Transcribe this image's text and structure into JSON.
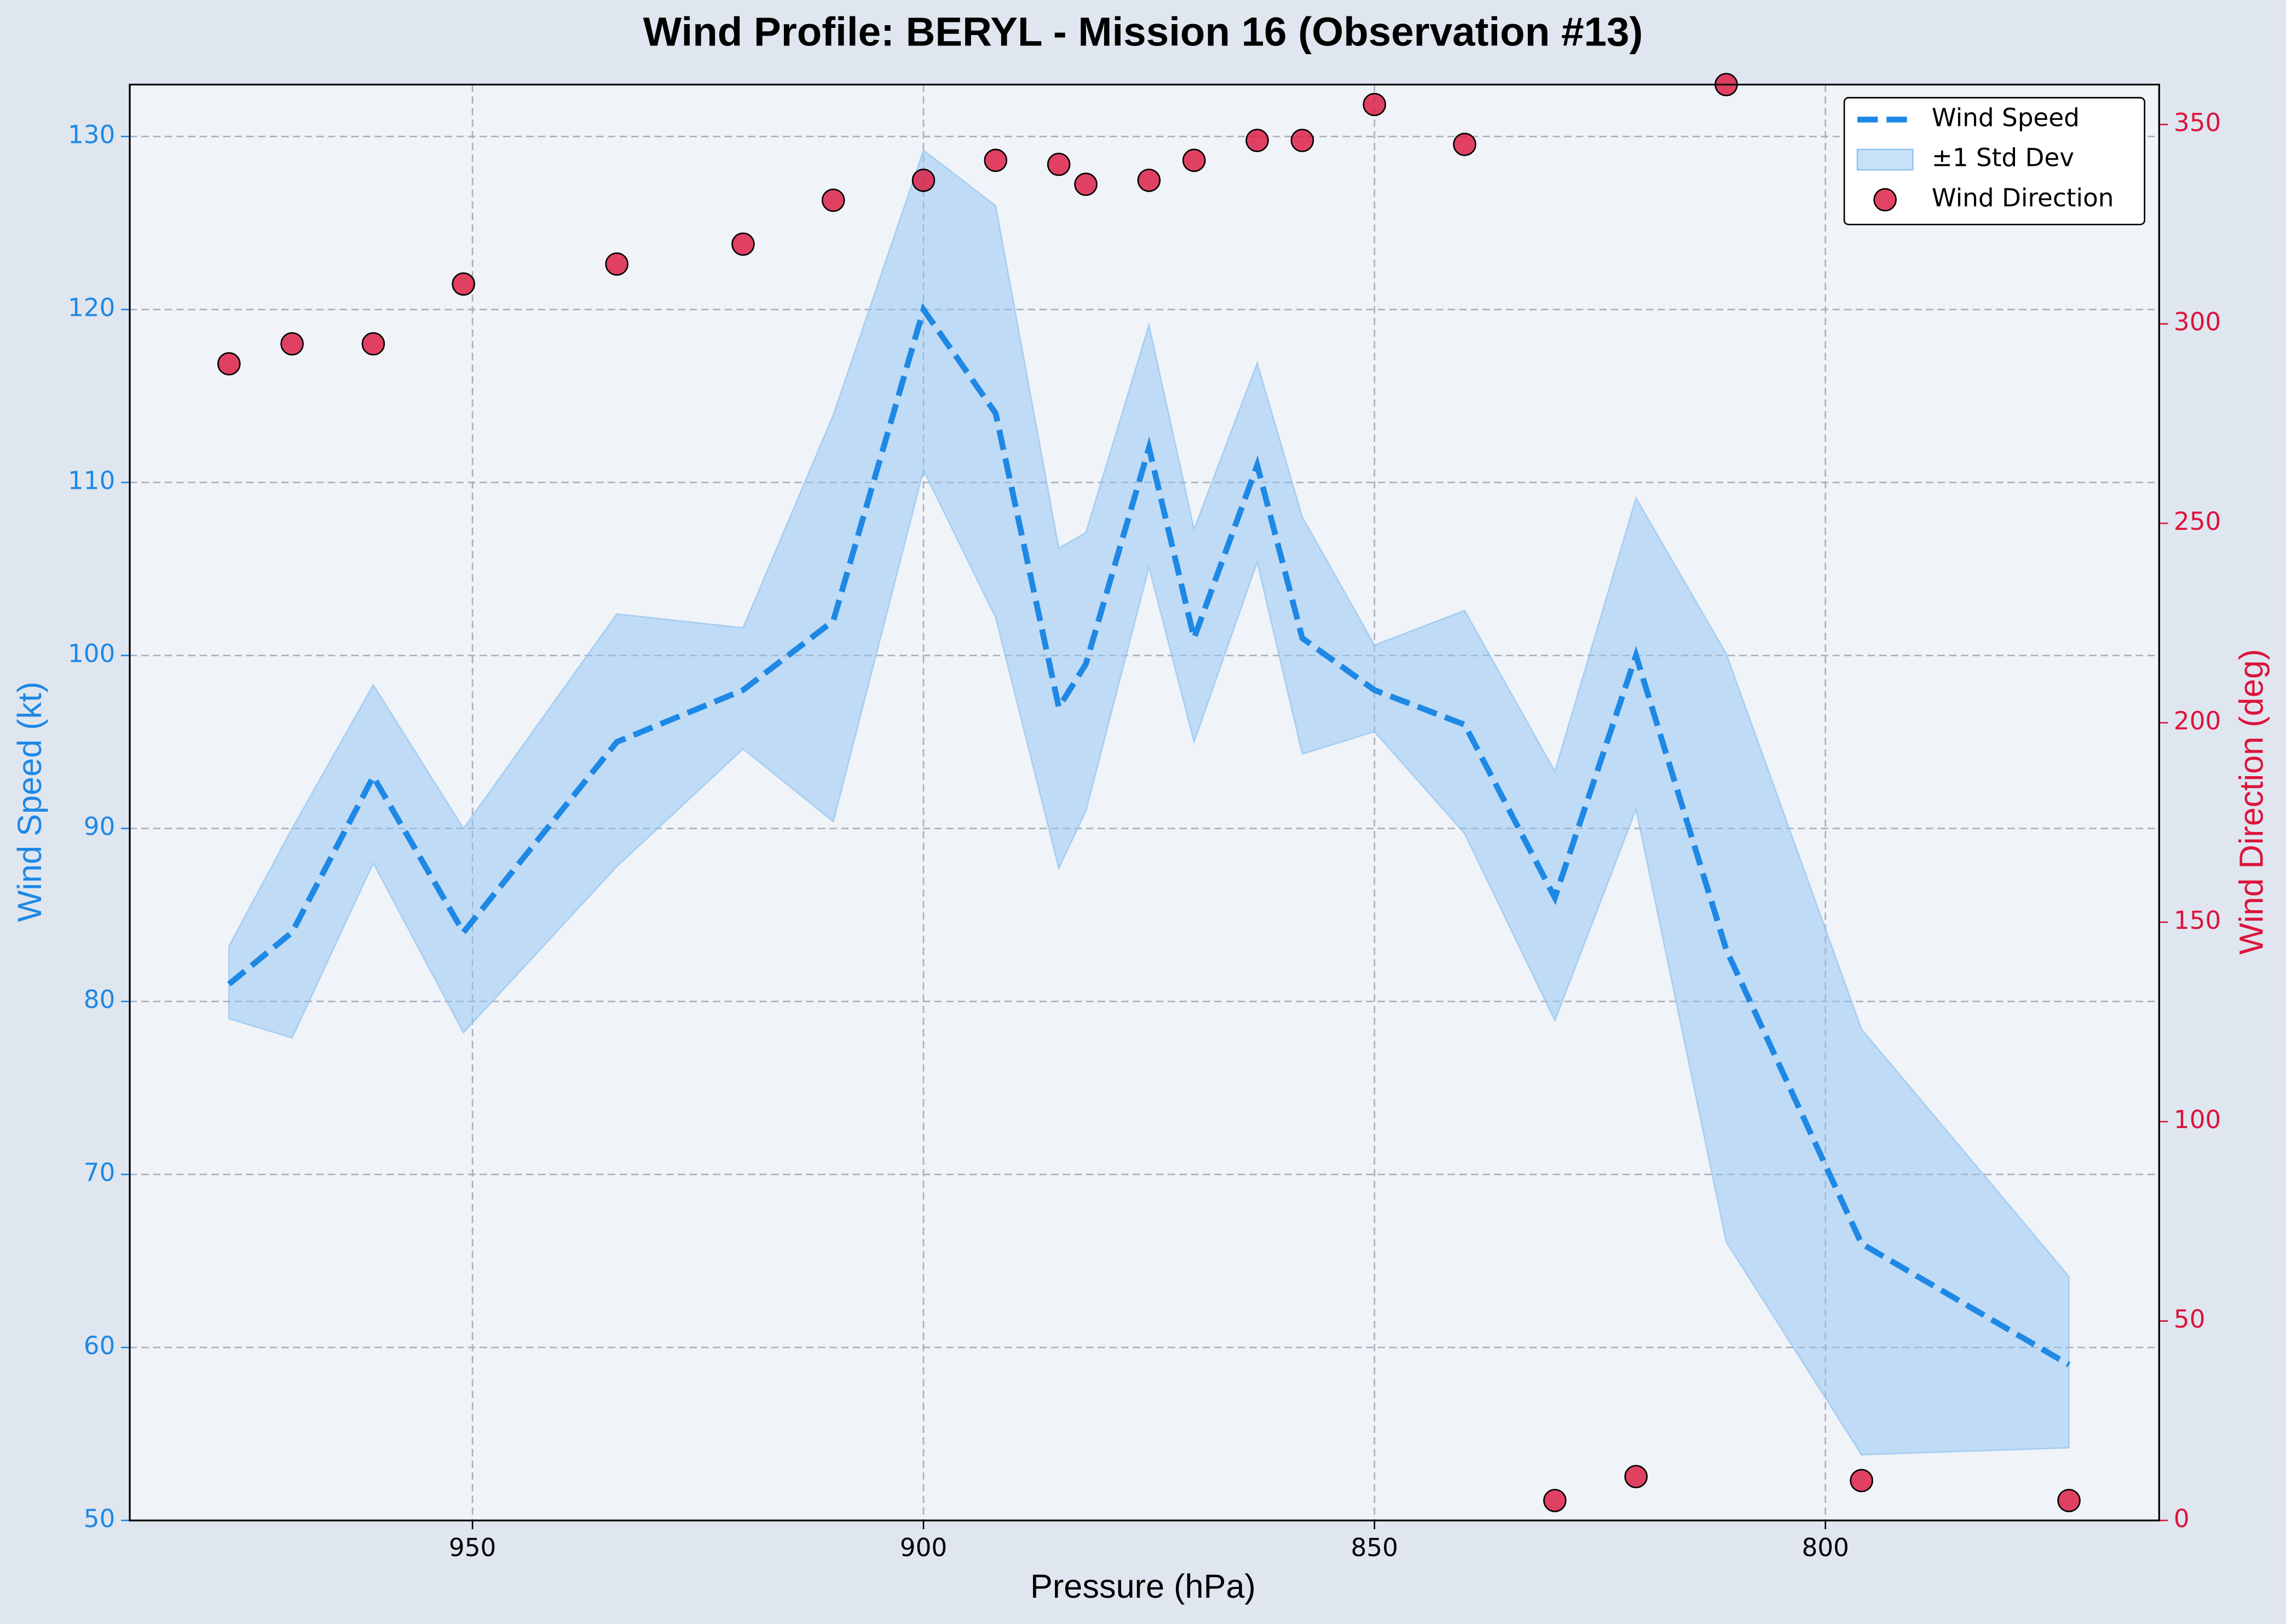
{
  "chart_data": {
    "type": "line",
    "title": "Wind Profile: BERYL - Mission 16 (Observation #13)",
    "x_label": "Pressure (hPa)",
    "y_label": "Wind Speed (kt)",
    "y2_label": "Wind Direction (deg)",
    "x": [
      977,
      970,
      961,
      951,
      934,
      920,
      910,
      900,
      892,
      885,
      882,
      875,
      870,
      863,
      858,
      850,
      840,
      830,
      821,
      811,
      796,
      773
    ],
    "series": [
      {
        "name": "Wind Speed",
        "color": "#1e88e5",
        "values": [
          81,
          84,
          93,
          84,
          95,
          98,
          102,
          120,
          114,
          97,
          99.5,
          112,
          101,
          111,
          101,
          98,
          96,
          86,
          100,
          83,
          66,
          59
        ]
      },
      {
        "name": "±1 Std Dev",
        "type": "band",
        "color": "#90c4f2",
        "upper": [
          83.2,
          90,
          98.3,
          90,
          102.4,
          101.6,
          113.9,
          129.2,
          126,
          106.2,
          107.1,
          119.1,
          107.3,
          116.9,
          108,
          100.6,
          102.6,
          93.3,
          109.1,
          100.1,
          78.4,
          64.1
        ],
        "lower": [
          79,
          77.9,
          88,
          78.2,
          87.8,
          94.6,
          90.4,
          110.7,
          102.2,
          87.7,
          91,
          105.1,
          95,
          105.4,
          94.3,
          95.6,
          89.7,
          78.9,
          91.1,
          66.1,
          53.8,
          54.2
        ]
      },
      {
        "name": "Wind Direction",
        "type": "scatter",
        "color": "#dc143c",
        "axis": "y2",
        "values": [
          290,
          295,
          295,
          310,
          315,
          320,
          331,
          336,
          341,
          340,
          335,
          336,
          341,
          346,
          346,
          355,
          345,
          5,
          11,
          360,
          10,
          5
        ]
      }
    ],
    "xlim": [
      988,
      763
    ],
    "xticks": [
      950,
      900,
      850,
      800
    ],
    "ylim": [
      50,
      133
    ],
    "yticks": [
      50,
      60,
      70,
      80,
      90,
      100,
      110,
      120,
      130
    ],
    "y2lim": [
      0,
      360
    ],
    "y2ticks": [
      0,
      50,
      100,
      150,
      200,
      250,
      300,
      350
    ],
    "grid": true,
    "legend": "upper right"
  }
}
